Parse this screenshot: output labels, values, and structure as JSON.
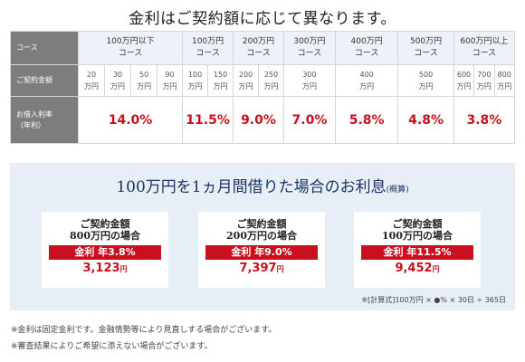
{
  "title": "金利はご契約額に応じて異なります。",
  "table": {
    "row_headers": {
      "course": "コース",
      "contract": "ご契約金額",
      "rate_line1": "お借入利率",
      "rate_line2": "（年利）"
    },
    "courses": [
      {
        "line1": "100万円以下",
        "line2": "コース"
      },
      {
        "line1": "100万円",
        "line2": "コース"
      },
      {
        "line1": "200万円",
        "line2": "コース"
      },
      {
        "line1": "300万円",
        "line2": "コース"
      },
      {
        "line1": "400万円",
        "line2": "コース"
      },
      {
        "line1": "500万円",
        "line2": "コース"
      },
      {
        "line1": "600万円以上",
        "line2": "コース"
      }
    ],
    "amounts": [
      {
        "num": "20",
        "unit": "万円"
      },
      {
        "num": "30",
        "unit": "万円"
      },
      {
        "num": "50",
        "unit": "万円"
      },
      {
        "num": "90",
        "unit": "万円"
      },
      {
        "num": "100",
        "unit": "万円"
      },
      {
        "num": "150",
        "unit": "万円"
      },
      {
        "num": "200",
        "unit": "万円"
      },
      {
        "num": "250",
        "unit": "万円"
      },
      {
        "num": "300",
        "unit": "万円"
      },
      {
        "num": "400",
        "unit": "万円"
      },
      {
        "num": "500",
        "unit": "万円"
      },
      {
        "num": "600",
        "unit": "万円"
      },
      {
        "num": "700",
        "unit": "万円"
      },
      {
        "num": "800",
        "unit": "万円"
      }
    ],
    "rates": [
      "14.0%",
      "11.5%",
      "9.0%",
      "7.0%",
      "5.8%",
      "4.8%",
      "3.8%"
    ]
  },
  "panel": {
    "title": "100万円を1ヵ月間借りた場合のお利息",
    "title_note": "(概算)",
    "examples": [
      {
        "line1": "ご契約金額",
        "line2": "800万円の場合",
        "rate": "金利 年3.8%",
        "amount": "3,123",
        "unit": "円"
      },
      {
        "line1": "ご契約金額",
        "line2": "200万円の場合",
        "rate": "金利 年9.0%",
        "amount": "7,397",
        "unit": "円"
      },
      {
        "line1": "ご契約金額",
        "line2": "100万円の場合",
        "rate": "金利 年11.5%",
        "amount": "9,452",
        "unit": "円"
      }
    ],
    "formula": "※[計算式]100万円 × ●% × 30日 ÷ 365日"
  },
  "notes": [
    "※金利は固定金利です。金融情勢等により見直しする場合がございます。",
    "※審査結果によりご希望に添えない場合がございます。"
  ]
}
